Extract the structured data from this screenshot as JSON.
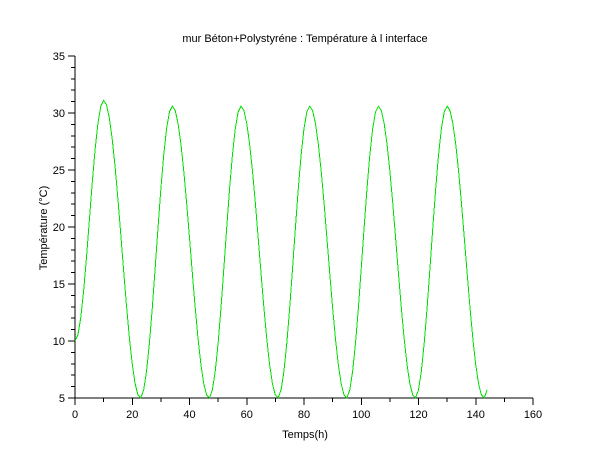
{
  "figure": {
    "background": "#ffffff"
  },
  "chart_data": {
    "type": "line",
    "title": "mur Béton+Polystyréne : Température à l interface",
    "xlabel": "Temps(h)",
    "ylabel": "Température (°C)",
    "xlim": [
      0,
      160
    ],
    "ylim": [
      5,
      35
    ],
    "xticks": [
      0,
      20,
      40,
      60,
      80,
      100,
      120,
      140,
      160
    ],
    "yticks": [
      5,
      10,
      15,
      20,
      25,
      30,
      35
    ],
    "x_minor_step": 10,
    "y_minor_step": 1,
    "grid": false,
    "legend": "none",
    "axis_color": "#000000",
    "series": [
      {
        "name": "Température à l interface",
        "color": "#00e000",
        "x_start": 0,
        "x_step": 1,
        "y": [
          10,
          10.52,
          12.02,
          14.35,
          17.29,
          20.55,
          23.81,
          26.75,
          29.08,
          30.58,
          31.1,
          30.71,
          29.56,
          27.72,
          25.3,
          22.45,
          19.33,
          16.14,
          13.06,
          10.28,
          7.97,
          6.25,
          5.25,
          5.02,
          5.72,
          7.36,
          9.82,
          12.9,
          16.37,
          19.94,
          23.35,
          26.33,
          28.64,
          30.1,
          30.6,
          30.22,
          29.09,
          27.28,
          24.91,
          22.11,
          19.05,
          15.92,
          12.9,
          10.18,
          7.91,
          6.23,
          5.25,
          5.02,
          5.72,
          7.36,
          9.82,
          12.9,
          16.37,
          19.94,
          23.35,
          26.33,
          28.64,
          30.1,
          30.6,
          30.22,
          29.09,
          27.28,
          24.91,
          22.11,
          19.05,
          15.92,
          12.9,
          10.18,
          7.91,
          6.23,
          5.25,
          5.02,
          5.72,
          7.36,
          9.82,
          12.9,
          16.37,
          19.94,
          23.35,
          26.33,
          28.64,
          30.1,
          30.6,
          30.22,
          29.09,
          27.28,
          24.91,
          22.11,
          19.05,
          15.92,
          12.9,
          10.18,
          7.91,
          6.23,
          5.25,
          5.02,
          5.72,
          7.36,
          9.82,
          12.9,
          16.37,
          19.94,
          23.35,
          26.33,
          28.64,
          30.1,
          30.6,
          30.22,
          29.09,
          27.28,
          24.91,
          22.11,
          19.05,
          15.92,
          12.9,
          10.18,
          7.91,
          6.23,
          5.25,
          5.02,
          5.72,
          7.36,
          9.82,
          12.9,
          16.37,
          19.94,
          23.35,
          26.33,
          28.64,
          30.1,
          30.6,
          30.22,
          29.09,
          27.28,
          24.91,
          22.11,
          19.05,
          15.92,
          12.9,
          10.18,
          7.91,
          6.23,
          5.25,
          5.02,
          5.72
        ]
      }
    ]
  }
}
